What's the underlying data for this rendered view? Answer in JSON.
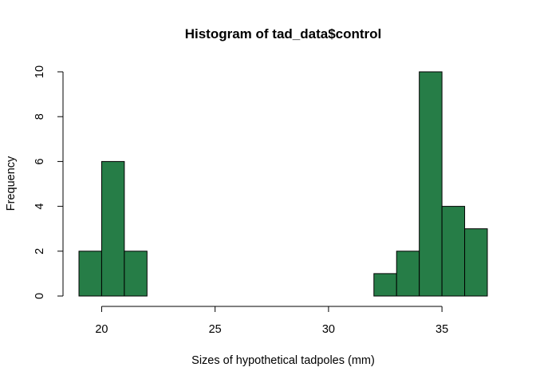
{
  "chart_data": {
    "type": "bar",
    "title": "Histogram of tad_data$control",
    "xlabel": "Sizes of hypothetical tadpoles (mm)",
    "ylabel": "Frequency",
    "bin_edges": [
      19,
      20,
      21,
      22,
      23,
      24,
      25,
      26,
      27,
      28,
      29,
      30,
      31,
      32,
      33,
      34,
      35,
      36,
      37
    ],
    "values": [
      2,
      6,
      2,
      0,
      0,
      0,
      0,
      0,
      0,
      0,
      0,
      0,
      0,
      1,
      2,
      10,
      4,
      3
    ],
    "xlim": [
      19,
      37
    ],
    "ylim": [
      0,
      10
    ],
    "x_ticks": [
      20,
      25,
      30,
      35
    ],
    "y_ticks": [
      0,
      2,
      4,
      6,
      8,
      10
    ],
    "bar_color": "#267d47",
    "grid": false,
    "legend": "none"
  }
}
